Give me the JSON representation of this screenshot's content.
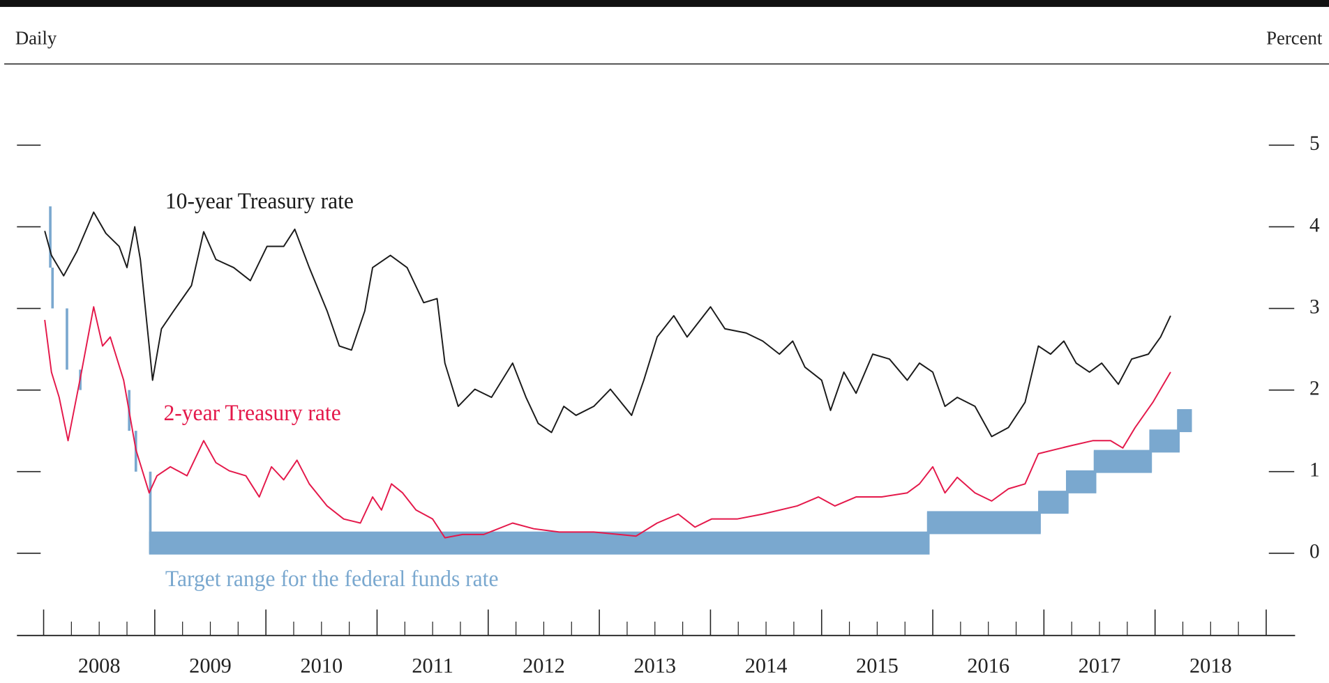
{
  "chart_data": {
    "type": "line",
    "left_label": "Daily",
    "right_label": "Percent",
    "xlim": [
      2007.76,
      2019.26
    ],
    "xticks": [
      {
        "value": 2008,
        "label": "2008"
      },
      {
        "value": 2009,
        "label": "2009"
      },
      {
        "value": 2010,
        "label": "2010"
      },
      {
        "value": 2011,
        "label": "2011"
      },
      {
        "value": 2012,
        "label": "2012"
      },
      {
        "value": 2013,
        "label": "2013"
      },
      {
        "value": 2014,
        "label": "2014"
      },
      {
        "value": 2015,
        "label": "2015"
      },
      {
        "value": 2016,
        "label": "2016"
      },
      {
        "value": 2017,
        "label": "2017"
      },
      {
        "value": 2018,
        "label": "2018"
      }
    ],
    "ylim": [
      -0.7,
      5.9
    ],
    "yticks": [
      0,
      1,
      2,
      3,
      4,
      5
    ],
    "series": [
      {
        "name": "10-year Treasury rate",
        "color": "#1a1a1a",
        "x": [
          2008.01,
          2008.07,
          2008.18,
          2008.3,
          2008.45,
          2008.56,
          2008.68,
          2008.75,
          2008.82,
          2008.87,
          2008.95,
          2008.98,
          2009.06,
          2009.17,
          2009.33,
          2009.44,
          2009.55,
          2009.71,
          2009.86,
          2010.01,
          2010.16,
          2010.26,
          2010.39,
          2010.55,
          2010.66,
          2010.77,
          2010.89,
          2010.96,
          2011.12,
          2011.27,
          2011.42,
          2011.54,
          2011.61,
          2011.73,
          2011.88,
          2012.03,
          2012.22,
          2012.34,
          2012.45,
          2012.57,
          2012.68,
          2012.79,
          2012.95,
          2013.1,
          2013.29,
          2013.4,
          2013.52,
          2013.67,
          2013.79,
          2014.0,
          2014.13,
          2014.32,
          2014.47,
          2014.62,
          2014.74,
          2014.85,
          2015.0,
          2015.08,
          2015.2,
          2015.31,
          2015.46,
          2015.61,
          2015.77,
          2015.88,
          2016.0,
          2016.11,
          2016.22,
          2016.38,
          2016.53,
          2016.68,
          2016.83,
          2016.95,
          2017.06,
          2017.18,
          2017.29,
          2017.41,
          2017.52,
          2017.67,
          2017.79,
          2017.94,
          2018.05,
          2018.14
        ],
        "values": [
          3.95,
          3.65,
          3.4,
          3.7,
          4.18,
          3.92,
          3.76,
          3.5,
          4.0,
          3.6,
          2.54,
          2.12,
          2.75,
          2.97,
          3.28,
          3.94,
          3.6,
          3.5,
          3.34,
          3.76,
          3.76,
          3.97,
          3.5,
          2.97,
          2.54,
          2.49,
          2.97,
          3.5,
          3.65,
          3.5,
          3.07,
          3.12,
          2.33,
          1.8,
          2.01,
          1.91,
          2.33,
          1.91,
          1.59,
          1.48,
          1.8,
          1.69,
          1.8,
          2.01,
          1.69,
          2.12,
          2.65,
          2.91,
          2.65,
          3.02,
          2.75,
          2.7,
          2.6,
          2.44,
          2.6,
          2.28,
          2.12,
          1.75,
          2.22,
          1.96,
          2.44,
          2.38,
          2.12,
          2.33,
          2.22,
          1.8,
          1.91,
          1.8,
          1.43,
          1.54,
          1.85,
          2.54,
          2.44,
          2.6,
          2.33,
          2.22,
          2.33,
          2.07,
          2.38,
          2.44,
          2.65,
          2.91
        ]
      },
      {
        "name": "2-year Treasury rate",
        "color": "#e4184a",
        "x": [
          2008.01,
          2008.07,
          2008.14,
          2008.22,
          2008.34,
          2008.45,
          2008.53,
          2008.6,
          2008.72,
          2008.83,
          2008.95,
          2009.02,
          2009.14,
          2009.29,
          2009.44,
          2009.55,
          2009.67,
          2009.82,
          2009.94,
          2010.05,
          2010.16,
          2010.28,
          2010.39,
          2010.55,
          2010.7,
          2010.85,
          2010.96,
          2011.04,
          2011.13,
          2011.23,
          2011.35,
          2011.5,
          2011.61,
          2011.77,
          2011.96,
          2012.22,
          2012.41,
          2012.64,
          2012.95,
          2013.33,
          2013.52,
          2013.71,
          2013.86,
          2014.01,
          2014.24,
          2014.47,
          2014.78,
          2014.97,
          2015.12,
          2015.31,
          2015.54,
          2015.77,
          2015.88,
          2016.0,
          2016.11,
          2016.22,
          2016.38,
          2016.53,
          2016.68,
          2016.83,
          2016.95,
          2017.1,
          2017.25,
          2017.44,
          2017.6,
          2017.71,
          2017.82,
          2017.98,
          2018.14
        ],
        "values": [
          2.86,
          2.22,
          1.91,
          1.38,
          2.22,
          3.02,
          2.54,
          2.65,
          2.12,
          1.27,
          0.74,
          0.95,
          1.06,
          0.95,
          1.38,
          1.11,
          1.01,
          0.95,
          0.69,
          1.06,
          0.9,
          1.14,
          0.85,
          0.58,
          0.42,
          0.37,
          0.69,
          0.53,
          0.85,
          0.74,
          0.53,
          0.42,
          0.19,
          0.23,
          0.23,
          0.37,
          0.3,
          0.26,
          0.26,
          0.21,
          0.37,
          0.48,
          0.32,
          0.42,
          0.42,
          0.48,
          0.58,
          0.69,
          0.58,
          0.69,
          0.69,
          0.74,
          0.85,
          1.06,
          0.74,
          0.93,
          0.74,
          0.64,
          0.79,
          0.85,
          1.22,
          1.27,
          1.32,
          1.38,
          1.38,
          1.29,
          1.54,
          1.85,
          2.22
        ]
      },
      {
        "name": "Target range for the federal funds rate",
        "color": "#7aa8cf",
        "kind": "step-range",
        "x": [
          2008.0,
          2008.06,
          2008.08,
          2008.21,
          2008.33,
          2008.77,
          2008.83,
          2008.96,
          2015.96,
          2016.96,
          2017.21,
          2017.46,
          2017.96,
          2018.21,
          2018.32
        ],
        "values": [
          4.25,
          3.5,
          3.0,
          2.25,
          2.0,
          1.5,
          1.0,
          0.25,
          0.5,
          0.75,
          1.0,
          1.25,
          1.5,
          1.75,
          1.75
        ],
        "low": [
          4.25,
          3.5,
          3.0,
          2.25,
          2.0,
          1.5,
          1.0,
          0,
          0.25,
          0.5,
          0.75,
          1.0,
          1.25,
          1.5,
          1.5
        ]
      }
    ]
  }
}
